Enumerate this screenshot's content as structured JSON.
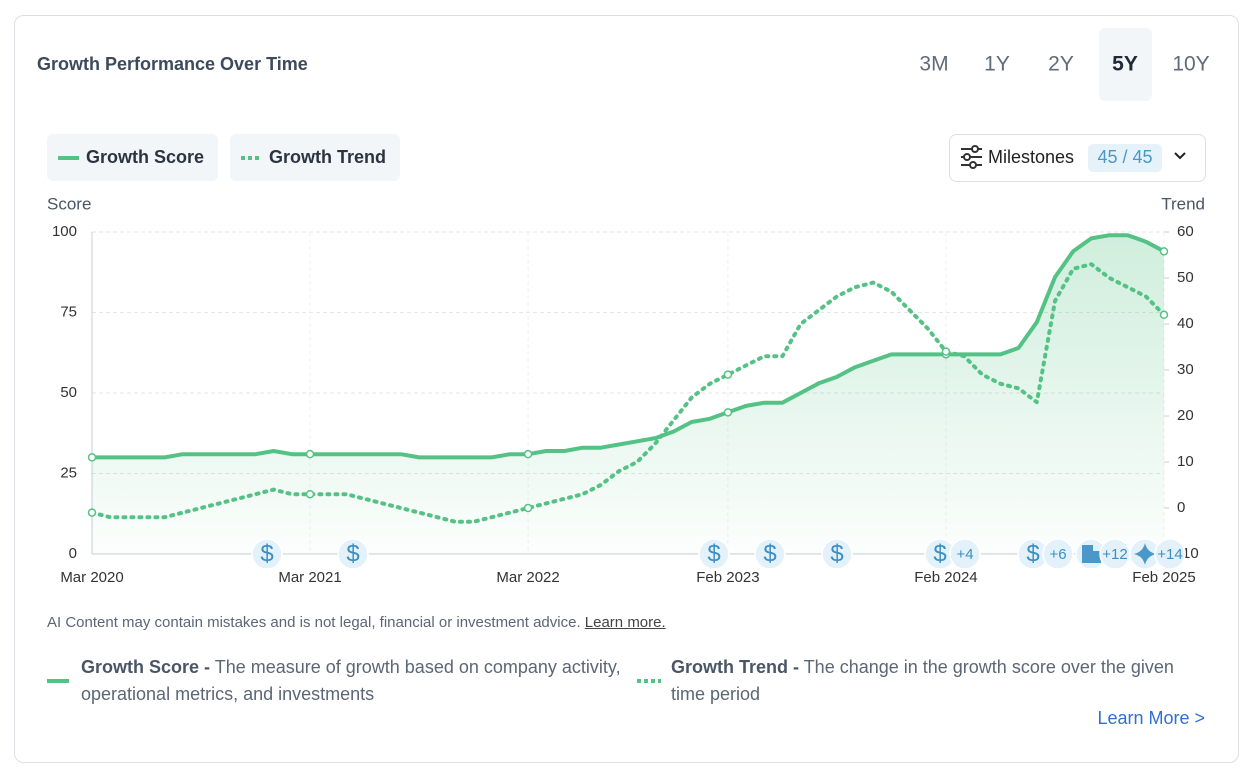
{
  "header": {
    "title": "Growth Performance Over Time",
    "ranges": [
      "3M",
      "1Y",
      "2Y",
      "5Y",
      "10Y"
    ],
    "selected_range": "5Y"
  },
  "milestones_button": {
    "label": "Milestones",
    "count": "45 / 45"
  },
  "chart_data": {
    "type": "line",
    "ylabel": "Score",
    "y2label": "Trend",
    "x": [
      "Mar 2020",
      "Apr 2020",
      "May 2020",
      "Jun 2020",
      "Jul 2020",
      "Aug 2020",
      "Sep 2020",
      "Oct 2020",
      "Nov 2020",
      "Dec 2020",
      "Jan 2021",
      "Feb 2021",
      "Mar 2021",
      "Apr 2021",
      "May 2021",
      "Jun 2021",
      "Jul 2021",
      "Aug 2021",
      "Sep 2021",
      "Oct 2021",
      "Nov 2021",
      "Dec 2021",
      "Jan 2022",
      "Feb 2022",
      "Mar 2022",
      "Apr 2022",
      "May 2022",
      "Jun 2022",
      "Jul 2022",
      "Aug 2022",
      "Sep 2022",
      "Oct 2022",
      "Nov 2022",
      "Dec 2022",
      "Jan 2023",
      "Feb 2023",
      "Mar 2023",
      "Apr 2023",
      "May 2023",
      "Jun 2023",
      "Jul 2023",
      "Aug 2023",
      "Sep 2023",
      "Oct 2023",
      "Nov 2023",
      "Dec 2023",
      "Jan 2024",
      "Feb 2024",
      "Mar 2024",
      "Apr 2024",
      "May 2024",
      "Jun 2024",
      "Jul 2024",
      "Aug 2024",
      "Sep 2024",
      "Oct 2024",
      "Nov 2024",
      "Dec 2024",
      "Jan 2025",
      "Feb 2025"
    ],
    "xlim": [
      "Mar 2020",
      "Feb 2025"
    ],
    "xticks": [
      "Mar 2020",
      "Mar 2021",
      "Mar 2022",
      "Feb 2023",
      "Feb 2024",
      "Feb 2025"
    ],
    "ylim": [
      0,
      100
    ],
    "yticks": [
      0,
      25,
      50,
      75,
      100
    ],
    "y2lim": [
      -10,
      60
    ],
    "y2ticks": [
      -10,
      0,
      10,
      20,
      30,
      40,
      50,
      60
    ],
    "grid": true,
    "series": [
      {
        "name": "Growth Score",
        "color": "#55c285",
        "dash": false,
        "values": [
          30,
          30,
          30,
          30,
          30,
          31,
          31,
          31,
          31,
          31,
          32,
          31,
          31,
          31,
          31,
          31,
          31,
          31,
          30,
          30,
          30,
          30,
          30,
          31,
          31,
          32,
          32,
          33,
          33,
          34,
          35,
          36,
          38,
          41,
          42,
          44,
          46,
          47,
          47,
          50,
          53,
          55,
          58,
          60,
          62,
          62,
          62,
          62,
          62,
          62,
          62,
          64,
          72,
          86,
          94,
          98,
          99,
          99,
          97,
          94
        ]
      },
      {
        "name": "Growth Trend",
        "color": "#55c285",
        "dash": true,
        "axis": "y2",
        "values": [
          -1,
          -2,
          -2,
          -2,
          -2,
          -1,
          0,
          1,
          2,
          3,
          4,
          3,
          3,
          3,
          3,
          2,
          1,
          0,
          -1,
          -2,
          -3,
          -3,
          -2,
          -1,
          0,
          1,
          2,
          3,
          5,
          8,
          10,
          14,
          19,
          24,
          27,
          29,
          31,
          33,
          33,
          40,
          43,
          46,
          48,
          49,
          47,
          43,
          39,
          34,
          33,
          29,
          27,
          26,
          23,
          45,
          52,
          53,
          50,
          48,
          46,
          42
        ]
      }
    ]
  },
  "milestones": [
    "$",
    "$",
    "$",
    "$",
    "$",
    "$",
    "+4",
    "$",
    "+6",
    "+12",
    "+14"
  ],
  "disclaimer": {
    "text": "AI Content may contain mistakes and is not legal, financial or investment advice.",
    "link": "Learn more."
  },
  "descriptions": [
    {
      "term": "Growth Score -",
      "text": "The measure of growth based on company activity, operational metrics, and investments"
    },
    {
      "term": "Growth Trend -",
      "text": "The change in the growth score over the given time period"
    }
  ],
  "learn_more": "Learn More >"
}
